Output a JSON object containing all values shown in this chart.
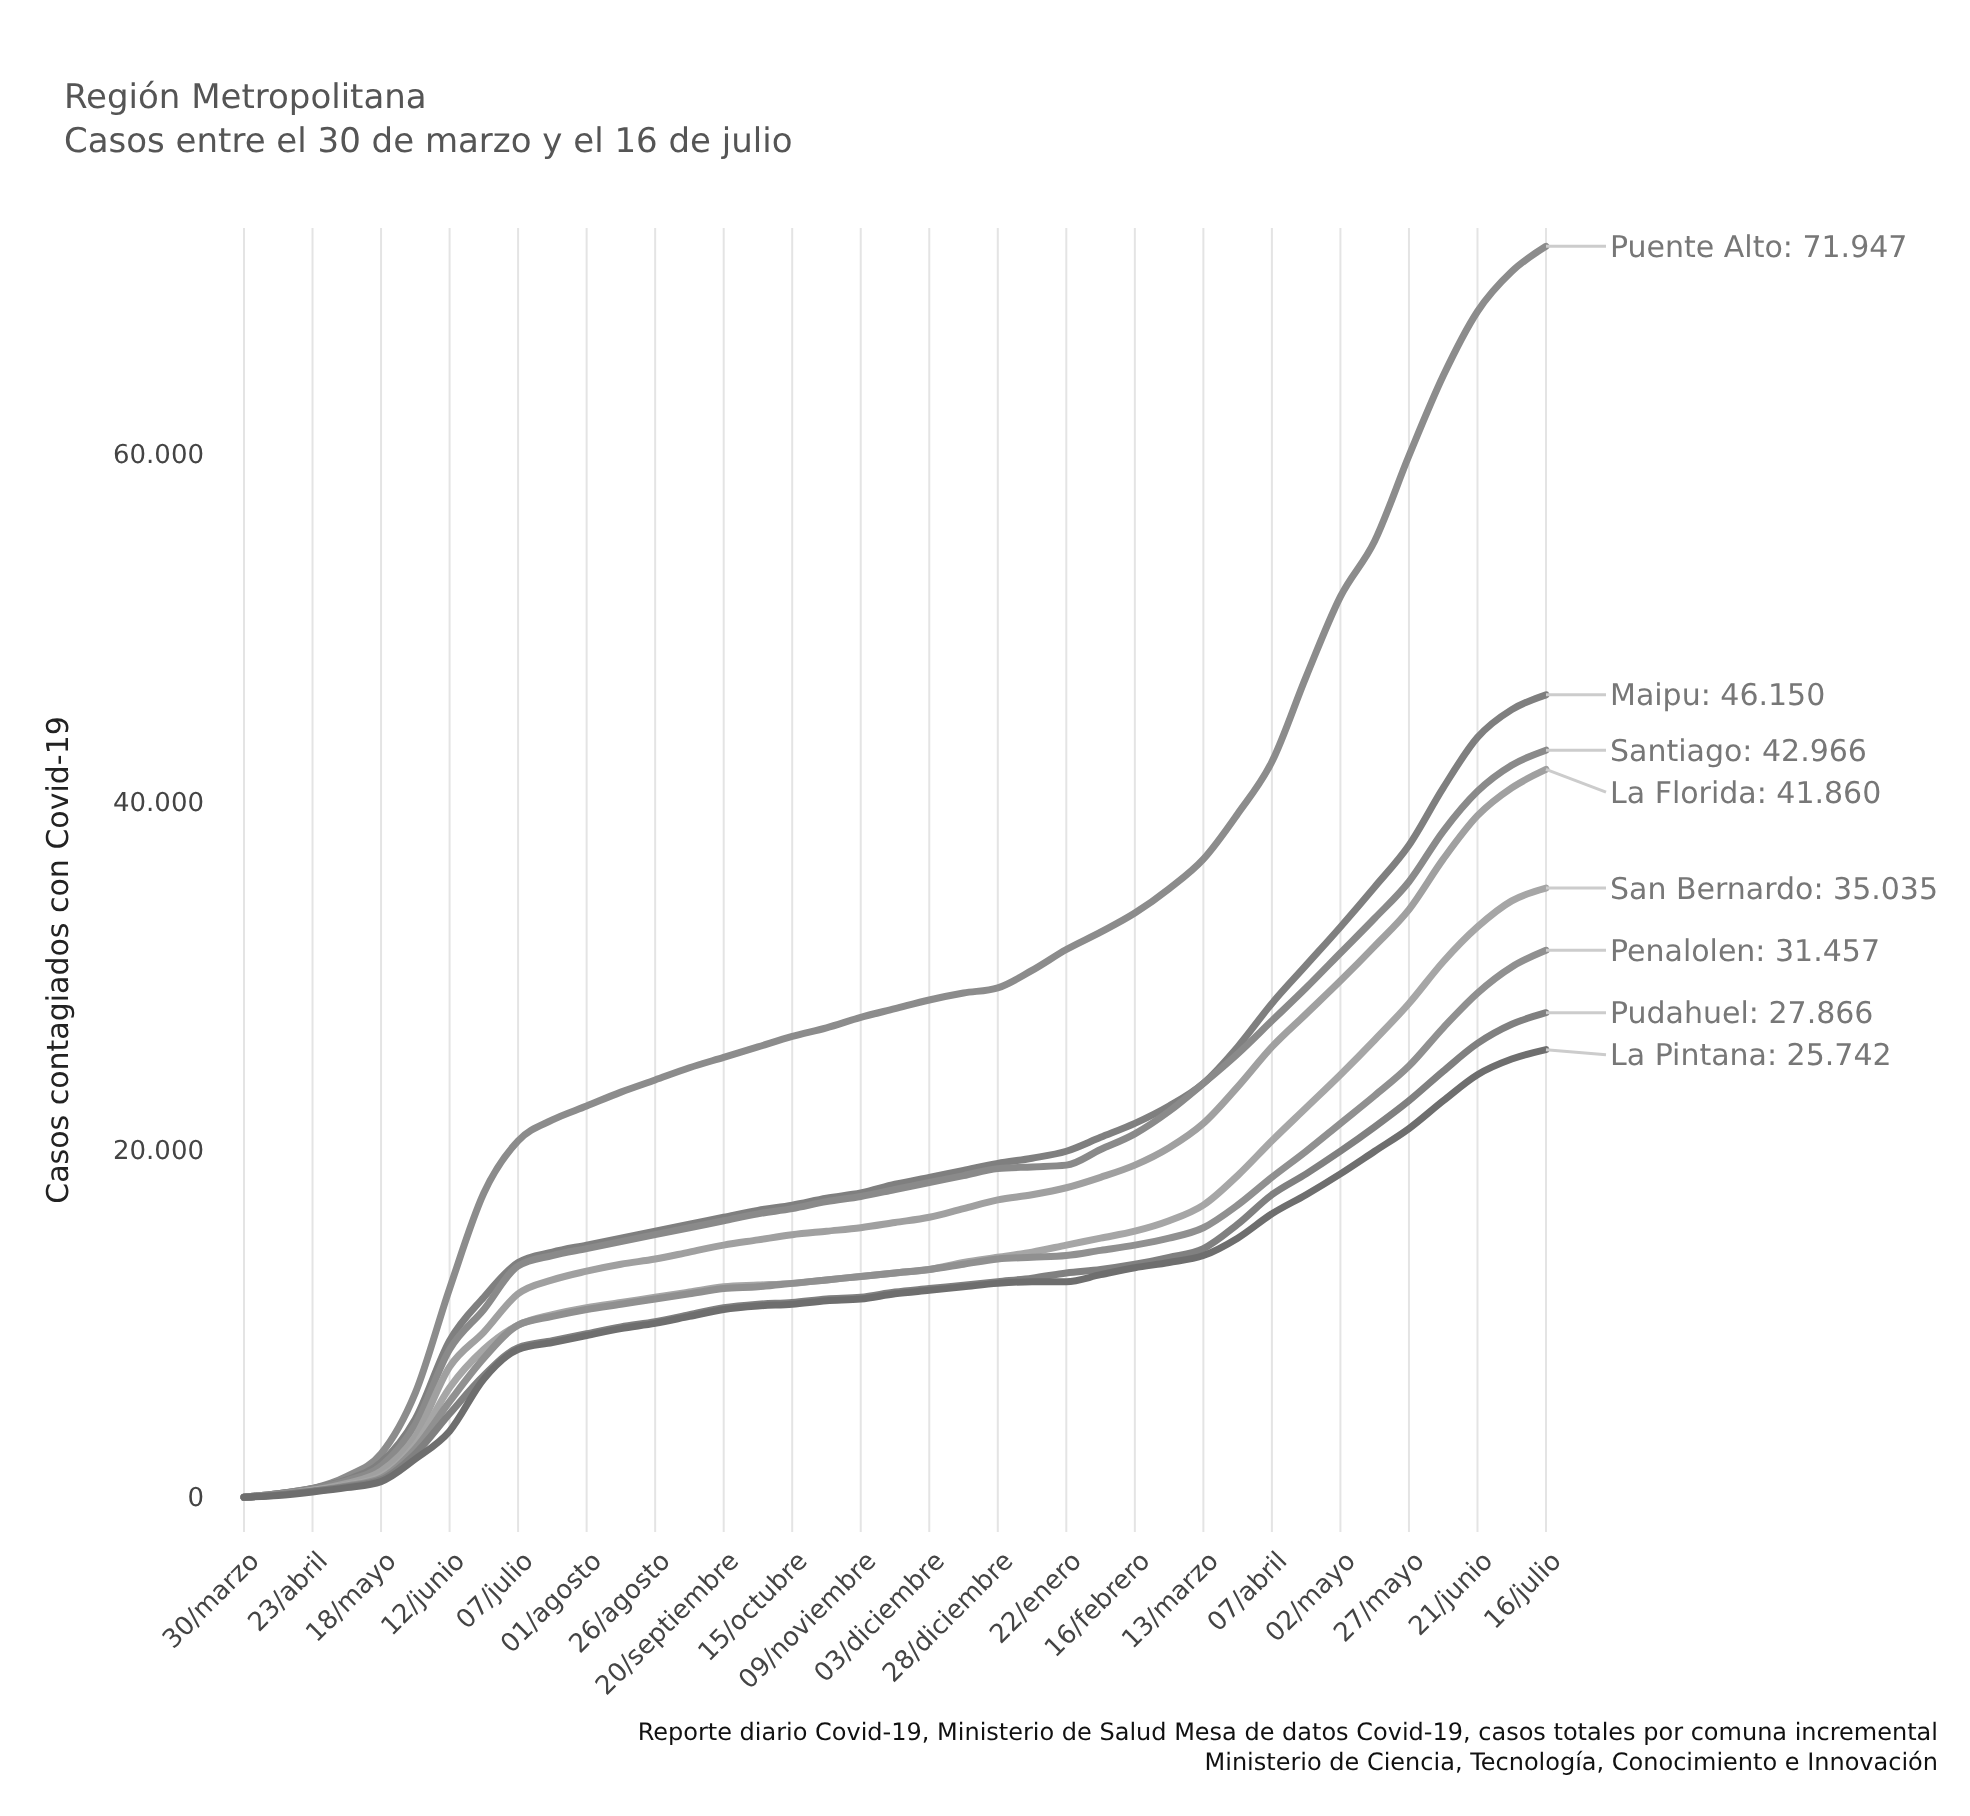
{
  "chart_data": {
    "type": "line",
    "title": "Región Metropolitana",
    "subtitle": "Casos entre el 30 de marzo y el 16 de julio",
    "ylabel": "Casos contagiados con Covid-19",
    "categories": [
      "30/marzo",
      null,
      "23/abril",
      null,
      "18/mayo",
      null,
      "12/junio",
      null,
      "07/julio",
      null,
      "01/agosto",
      null,
      "26/agosto",
      null,
      "20/septiembre",
      null,
      "15/octubre",
      null,
      "09/noviembre",
      null,
      "03/diciembre",
      null,
      "28/diciembre",
      null,
      "22/enero",
      null,
      "16/febrero",
      null,
      "13/marzo",
      null,
      "07/abril",
      null,
      "02/mayo",
      null,
      "27/mayo",
      null,
      "21/junio",
      null,
      "16/julio"
    ],
    "series": [
      {
        "name": "Puente Alto:",
        "color": "#8c8c8c",
        "values": [
          0,
          200,
          500,
          1200,
          2500,
          6000,
          12000,
          17500,
          20500,
          21700,
          22500,
          23300,
          24000,
          24700,
          25300,
          25900,
          26500,
          27000,
          27600,
          28100,
          28600,
          29000,
          29300,
          30300,
          31500,
          32500,
          33600,
          35000,
          36700,
          39300,
          42300,
          47200,
          51800,
          55000,
          59900,
          64500,
          68200,
          70500,
          71947
        ],
        "value_labels": [
          null,
          null,
          null,
          null,
          null,
          null,
          null,
          null,
          null,
          null,
          null,
          null,
          null,
          null,
          null,
          null,
          null,
          null,
          null,
          null,
          null,
          null,
          null,
          null,
          null,
          null,
          null,
          null,
          null,
          null,
          null,
          null,
          null,
          null,
          null,
          null,
          null,
          null,
          "71.947"
        ]
      },
      {
        "name": "Maipu:",
        "color": "#7f7f7f",
        "values": [
          0,
          200,
          500,
          1000,
          2000,
          4500,
          9000,
          11500,
          13500,
          14100,
          14500,
          14900,
          15300,
          15700,
          16100,
          16500,
          16800,
          17200,
          17500,
          18000,
          18400,
          18800,
          19200,
          19500,
          19900,
          20700,
          21500,
          22500,
          23800,
          25900,
          28400,
          30600,
          32800,
          35100,
          37500,
          40800,
          43700,
          45300,
          46150
        ],
        "value_labels": [
          null,
          null,
          null,
          null,
          null,
          null,
          null,
          null,
          null,
          null,
          null,
          null,
          null,
          null,
          null,
          null,
          null,
          null,
          null,
          null,
          null,
          null,
          null,
          null,
          null,
          null,
          null,
          null,
          null,
          null,
          null,
          null,
          null,
          null,
          null,
          null,
          null,
          null,
          "46.150"
        ]
      },
      {
        "name": "Santiago:",
        "color": "#8a8a8a",
        "values": [
          0,
          200,
          500,
          950,
          1800,
          4200,
          8500,
          10800,
          13300,
          13900,
          14300,
          14700,
          15100,
          15500,
          15900,
          16300,
          16600,
          17000,
          17300,
          17700,
          18100,
          18500,
          18900,
          19000,
          19100,
          20000,
          20900,
          22200,
          23800,
          25500,
          27400,
          29300,
          31300,
          33300,
          35400,
          38300,
          40600,
          42100,
          42966
        ],
        "value_labels": [
          null,
          null,
          null,
          null,
          null,
          null,
          null,
          null,
          null,
          null,
          null,
          null,
          null,
          null,
          null,
          null,
          null,
          null,
          null,
          null,
          null,
          null,
          null,
          null,
          null,
          null,
          null,
          null,
          null,
          null,
          null,
          null,
          null,
          null,
          null,
          null,
          null,
          null,
          "42.966"
        ]
      },
      {
        "name": "La Florida:",
        "color": "#a0a0a0",
        "values": [
          0,
          150,
          400,
          800,
          1500,
          3500,
          7500,
          9500,
          11700,
          12500,
          13000,
          13400,
          13700,
          14100,
          14500,
          14800,
          15100,
          15300,
          15500,
          15800,
          16100,
          16600,
          17100,
          17400,
          17800,
          18400,
          19100,
          20100,
          21500,
          23600,
          25900,
          27800,
          29700,
          31700,
          33800,
          36700,
          39200,
          40800,
          41860
        ],
        "value_labels": [
          null,
          null,
          null,
          null,
          null,
          null,
          null,
          null,
          null,
          null,
          null,
          null,
          null,
          null,
          null,
          null,
          null,
          null,
          null,
          null,
          null,
          null,
          null,
          null,
          null,
          null,
          null,
          null,
          null,
          null,
          null,
          null,
          null,
          null,
          null,
          null,
          null,
          null,
          "41.860"
        ]
      },
      {
        "name": "San Bernardo:",
        "color": "#a6a6a6",
        "values": [
          0,
          150,
          400,
          700,
          1200,
          3000,
          6300,
          8500,
          9900,
          10500,
          10900,
          11200,
          11500,
          11800,
          12100,
          12200,
          12300,
          12500,
          12700,
          12900,
          13100,
          13500,
          13800,
          14100,
          14500,
          14900,
          15300,
          15900,
          16800,
          18500,
          20500,
          22400,
          24300,
          26300,
          28400,
          30800,
          32800,
          34300,
          35035
        ],
        "value_labels": [
          null,
          null,
          null,
          null,
          null,
          null,
          null,
          null,
          null,
          null,
          null,
          null,
          null,
          null,
          null,
          null,
          null,
          null,
          null,
          null,
          null,
          null,
          null,
          null,
          null,
          null,
          null,
          null,
          null,
          null,
          null,
          null,
          null,
          null,
          null,
          null,
          null,
          null,
          "35.035"
        ]
      },
      {
        "name": "Penalolen:",
        "color": "#909090",
        "values": [
          0,
          150,
          350,
          650,
          1100,
          2800,
          5500,
          8000,
          9900,
          10400,
          10800,
          11100,
          11400,
          11700,
          12000,
          12100,
          12300,
          12500,
          12700,
          12900,
          13100,
          13400,
          13700,
          13800,
          13900,
          14200,
          14500,
          14900,
          15500,
          16800,
          18400,
          19900,
          21500,
          23100,
          24800,
          27000,
          29000,
          30500,
          31457
        ],
        "value_labels": [
          null,
          null,
          null,
          null,
          null,
          null,
          null,
          null,
          null,
          null,
          null,
          null,
          null,
          null,
          null,
          null,
          null,
          null,
          null,
          null,
          null,
          null,
          null,
          null,
          null,
          null,
          null,
          null,
          null,
          null,
          null,
          null,
          null,
          null,
          null,
          null,
          null,
          null,
          "31.457"
        ]
      },
      {
        "name": "Pudahuel:",
        "color": "#808080",
        "values": [
          0,
          150,
          350,
          600,
          1000,
          2500,
          4800,
          7000,
          8600,
          9000,
          9400,
          9800,
          10100,
          10500,
          10900,
          11100,
          11200,
          11400,
          11500,
          11800,
          12000,
          12200,
          12400,
          12600,
          12900,
          13100,
          13400,
          13800,
          14300,
          15700,
          17400,
          18600,
          19900,
          21300,
          22800,
          24500,
          26100,
          27200,
          27866
        ],
        "value_labels": [
          null,
          null,
          null,
          null,
          null,
          null,
          null,
          null,
          null,
          null,
          null,
          null,
          null,
          null,
          null,
          null,
          null,
          null,
          null,
          null,
          null,
          null,
          null,
          null,
          null,
          null,
          null,
          null,
          null,
          null,
          null,
          null,
          null,
          null,
          null,
          null,
          null,
          null,
          "27.866"
        ]
      },
      {
        "name": "La Pintana:",
        "color": "#6e6e6e",
        "values": [
          0,
          100,
          300,
          550,
          900,
          2200,
          3800,
          6800,
          8500,
          8900,
          9300,
          9700,
          10000,
          10400,
          10800,
          11000,
          11100,
          11300,
          11400,
          11700,
          11900,
          12100,
          12300,
          12400,
          12400,
          12800,
          13200,
          13500,
          13900,
          14900,
          16300,
          17400,
          18600,
          19900,
          21200,
          22800,
          24300,
          25200,
          25742
        ],
        "value_labels": [
          null,
          null,
          null,
          null,
          null,
          null,
          null,
          null,
          null,
          null,
          null,
          null,
          null,
          null,
          null,
          null,
          null,
          null,
          null,
          null,
          null,
          null,
          null,
          null,
          null,
          null,
          null,
          null,
          null,
          null,
          null,
          null,
          null,
          null,
          null,
          null,
          null,
          null,
          "25.742"
        ]
      }
    ],
    "ylim": [
      -2000,
      73000
    ],
    "yticks": [
      0,
      {
        "value": 20000,
        "label": "20.000"
      },
      {
        "value": 40000,
        "label": "40.000"
      },
      {
        "value": 60000,
        "label": "60.000"
      }
    ],
    "grid": "x",
    "line_style": "solid",
    "annotations": [
      "Reporte diario Covid-19, Ministerio de Salud Mesa de datos Covid-19, casos totales por comuna incremental",
      "Ministerio de Ciencia, Tecnología, Conocimiento e Innovación"
    ]
  }
}
